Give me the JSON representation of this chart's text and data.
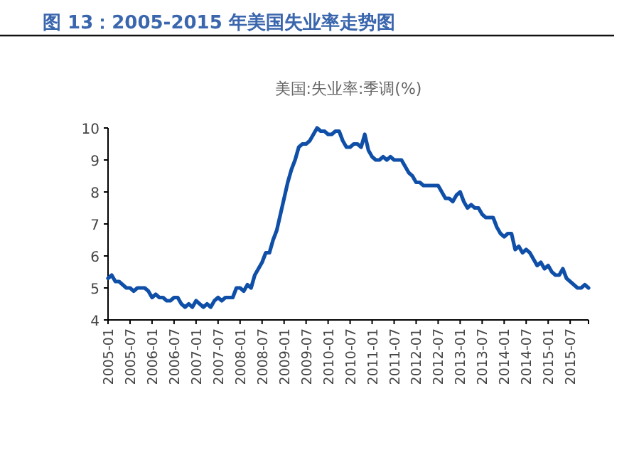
{
  "chart_data": {
    "type": "line",
    "title": "图 13：2005-2015 年美国失业率走势图",
    "subtitle": "美国:失业率:季调(%)",
    "x": [
      "2005-01",
      "2005-02",
      "2005-03",
      "2005-04",
      "2005-05",
      "2005-06",
      "2005-07",
      "2005-08",
      "2005-09",
      "2005-10",
      "2005-11",
      "2005-12",
      "2006-01",
      "2006-02",
      "2006-03",
      "2006-04",
      "2006-05",
      "2006-06",
      "2006-07",
      "2006-08",
      "2006-09",
      "2006-10",
      "2006-11",
      "2006-12",
      "2007-01",
      "2007-02",
      "2007-03",
      "2007-04",
      "2007-05",
      "2007-06",
      "2007-07",
      "2007-08",
      "2007-09",
      "2007-10",
      "2007-11",
      "2007-12",
      "2008-01",
      "2008-02",
      "2008-03",
      "2008-04",
      "2008-05",
      "2008-06",
      "2008-07",
      "2008-08",
      "2008-09",
      "2008-10",
      "2008-11",
      "2008-12",
      "2009-01",
      "2009-02",
      "2009-03",
      "2009-04",
      "2009-05",
      "2009-06",
      "2009-07",
      "2009-08",
      "2009-09",
      "2009-10",
      "2009-11",
      "2009-12",
      "2010-01",
      "2010-02",
      "2010-03",
      "2010-04",
      "2010-05",
      "2010-06",
      "2010-07",
      "2010-08",
      "2010-09",
      "2010-10",
      "2010-11",
      "2010-12",
      "2011-01",
      "2011-02",
      "2011-03",
      "2011-04",
      "2011-05",
      "2011-06",
      "2011-07",
      "2011-08",
      "2011-09",
      "2011-10",
      "2011-11",
      "2011-12",
      "2012-01",
      "2012-02",
      "2012-03",
      "2012-04",
      "2012-05",
      "2012-06",
      "2012-07",
      "2012-08",
      "2012-09",
      "2012-10",
      "2012-11",
      "2012-12",
      "2013-01",
      "2013-02",
      "2013-03",
      "2013-04",
      "2013-05",
      "2013-06",
      "2013-07",
      "2013-08",
      "2013-09",
      "2013-10",
      "2013-11",
      "2013-12",
      "2014-01",
      "2014-02",
      "2014-03",
      "2014-04",
      "2014-05",
      "2014-06",
      "2014-07",
      "2014-08",
      "2014-09",
      "2014-10",
      "2014-11",
      "2014-12",
      "2015-01",
      "2015-02",
      "2015-03",
      "2015-04",
      "2015-05",
      "2015-06",
      "2015-07",
      "2015-08",
      "2015-09",
      "2015-10",
      "2015-11",
      "2015-12"
    ],
    "series": [
      {
        "color": "#0f4fa8",
        "values": [
          5.3,
          5.4,
          5.2,
          5.2,
          5.1,
          5.0,
          5.0,
          4.9,
          5.0,
          5.0,
          5.0,
          4.9,
          4.7,
          4.8,
          4.7,
          4.7,
          4.6,
          4.6,
          4.7,
          4.7,
          4.5,
          4.4,
          4.5,
          4.4,
          4.6,
          4.5,
          4.4,
          4.5,
          4.4,
          4.6,
          4.7,
          4.6,
          4.7,
          4.7,
          4.7,
          5.0,
          5.0,
          4.9,
          5.1,
          5.0,
          5.4,
          5.6,
          5.8,
          6.1,
          6.1,
          6.5,
          6.8,
          7.3,
          7.8,
          8.3,
          8.7,
          9.0,
          9.4,
          9.5,
          9.5,
          9.6,
          9.8,
          10.0,
          9.9,
          9.9,
          9.8,
          9.8,
          9.9,
          9.9,
          9.6,
          9.4,
          9.4,
          9.5,
          9.5,
          9.4,
          9.8,
          9.3,
          9.1,
          9.0,
          9.0,
          9.1,
          9.0,
          9.1,
          9.0,
          9.0,
          9.0,
          8.8,
          8.6,
          8.5,
          8.3,
          8.3,
          8.2,
          8.2,
          8.2,
          8.2,
          8.2,
          8.0,
          7.8,
          7.8,
          7.7,
          7.9,
          8.0,
          7.7,
          7.5,
          7.6,
          7.5,
          7.5,
          7.3,
          7.2,
          7.2,
          7.2,
          6.9,
          6.7,
          6.6,
          6.7,
          6.7,
          6.2,
          6.3,
          6.1,
          6.2,
          6.1,
          5.9,
          5.7,
          5.8,
          5.6,
          5.7,
          5.5,
          5.4,
          5.4,
          5.6,
          5.3,
          5.2,
          5.1,
          5.0,
          5.0,
          5.1,
          5.0
        ]
      }
    ],
    "xlim": [
      "2005-01",
      "2015-12"
    ],
    "xticks": [
      "2005-01",
      "2005-07",
      "2006-01",
      "2006-07",
      "2007-01",
      "2007-07",
      "2008-01",
      "2008-07",
      "2009-01",
      "2009-07",
      "2010-01",
      "2010-07",
      "2011-01",
      "2011-07",
      "2012-01",
      "2012-07",
      "2013-01",
      "2013-07",
      "2014-01",
      "2014-07",
      "2015-01",
      "2015-07"
    ],
    "ylim": [
      4,
      10
    ],
    "yticks": [
      4,
      5,
      6,
      7,
      8,
      9,
      10
    ],
    "grid": false,
    "marker": "none",
    "line_style": "solid"
  }
}
